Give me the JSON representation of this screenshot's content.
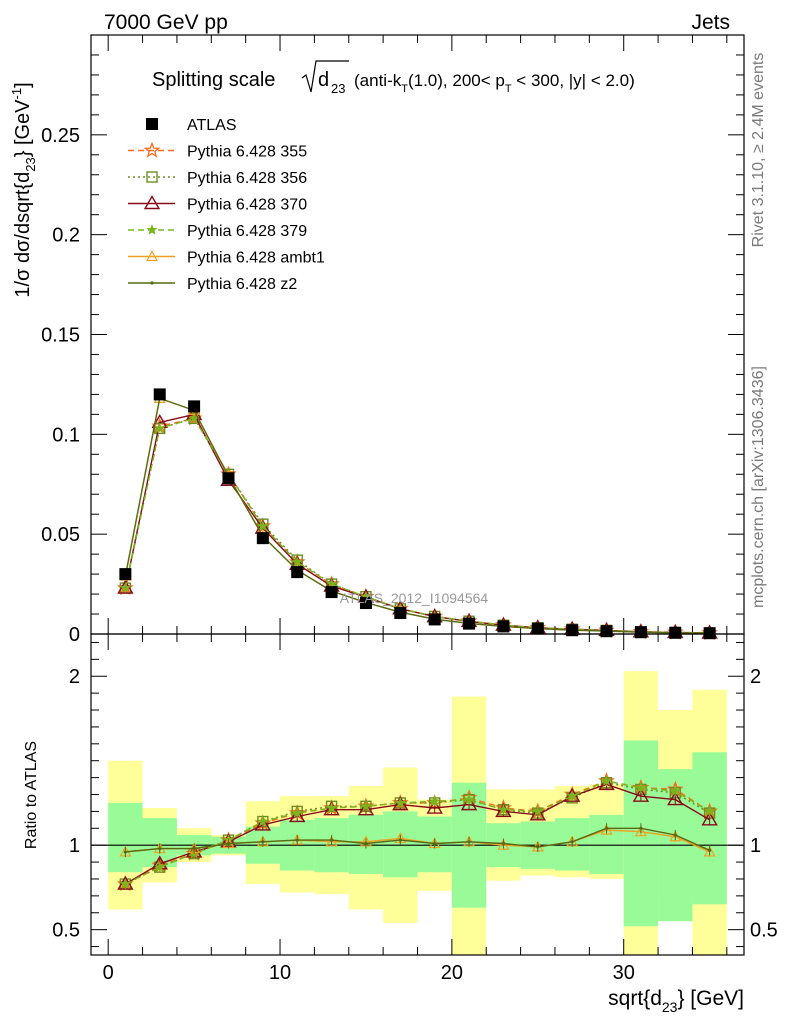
{
  "header": {
    "left": "7000 GeV pp",
    "right": "Jets"
  },
  "side_labels": {
    "rivet": "Rivet 3.1.10, ≥ 2.4M events",
    "mcplots": "mcplots.cern.ch [arXiv:1306.3436]"
  },
  "colors": {
    "data": "#000000",
    "p355": "#ff6a1a",
    "p356": "#6b8e23",
    "p370": "#8b0a1a",
    "p379": "#7ab51d",
    "ambt1": "#f0a020",
    "z2": "#556b14",
    "band_inner": "#98fb98",
    "band_outer": "#ffff99"
  },
  "chart_data": [
    {
      "type": "line",
      "title": "Splitting scale √d23 (anti-kT(1.0), 200< pT < 300, |y| < 2.0)",
      "title_parts": {
        "prefix": "Splitting scale",
        "sqrt_var": "d",
        "sqrt_sub": "23",
        "suffix_a": "(anti-k",
        "suffix_a_sub": "T",
        "suffix_b": "(1.0), 200< p",
        "suffix_b_sub": "T",
        "suffix_c": " < 300, |y| < 2.0)"
      },
      "ylabel": "1/σ dσ/dsqrt{d23} [GeV-1]",
      "ylabel_parts": {
        "main": "1/σ dσ/dsqrt{d",
        "sub": "23",
        "close": "} [GeV",
        "sup": "-1",
        "end": "]"
      },
      "ylim": [
        0,
        0.3
      ],
      "yticks": [
        0,
        0.05,
        0.1,
        0.15,
        0.2,
        0.25
      ],
      "ytick_labels": [
        "0",
        "0.05",
        "0.1",
        "0.15",
        "0.2",
        "0.25"
      ],
      "xlim": [
        -1,
        37
      ],
      "x": [
        1,
        3,
        5,
        7,
        9,
        11,
        13,
        15,
        17,
        19,
        21,
        23,
        25,
        27,
        29,
        31,
        33,
        35
      ],
      "watermark": "ATLAS_2012_I1094564",
      "series": [
        {
          "name": "ATLAS",
          "key": "data",
          "values": [
            0.03,
            0.12,
            0.114,
            0.078,
            0.048,
            0.031,
            0.021,
            0.0155,
            0.0105,
            0.0073,
            0.0052,
            0.0038,
            0.0027,
            0.0019,
            0.0014,
            0.0009,
            0.0006,
            0.0004
          ]
        },
        {
          "name": "Pythia 6.428 355",
          "key": "p355",
          "values": [
            0.023,
            0.104,
            0.108,
            0.08,
            0.054,
            0.036,
            0.025,
            0.0187,
            0.0127,
            0.0088,
            0.0064,
            0.0045,
            0.0031,
            0.0024,
            0.0018,
            0.0011,
            0.0008,
            0.0005
          ]
        },
        {
          "name": "Pythia 6.428 356",
          "key": "p356",
          "values": [
            0.023,
            0.103,
            0.108,
            0.08,
            0.055,
            0.037,
            0.025,
            0.0187,
            0.0126,
            0.0088,
            0.0064,
            0.0044,
            0.0031,
            0.0024,
            0.0018,
            0.0011,
            0.0008,
            0.0005
          ]
        },
        {
          "name": "Pythia 6.428 370",
          "key": "p370",
          "values": [
            0.023,
            0.106,
            0.11,
            0.077,
            0.053,
            0.035,
            0.024,
            0.0185,
            0.0126,
            0.0087,
            0.0063,
            0.0044,
            0.0031,
            0.0024,
            0.0018,
            0.0011,
            0.0008,
            0.0005
          ]
        },
        {
          "name": "Pythia 6.428 379",
          "key": "p379",
          "values": [
            0.023,
            0.103,
            0.108,
            0.08,
            0.054,
            0.036,
            0.025,
            0.0187,
            0.0127,
            0.0088,
            0.0064,
            0.0045,
            0.0031,
            0.0024,
            0.0018,
            0.0011,
            0.0008,
            0.0005
          ]
        },
        {
          "name": "Pythia 6.428 ambt1",
          "key": "ambt1",
          "values": [
            0.029,
            0.118,
            0.112,
            0.079,
            0.049,
            0.032,
            0.0215,
            0.0158,
            0.0109,
            0.0074,
            0.0053,
            0.0038,
            0.0027,
            0.0019,
            0.0015,
            0.0009,
            0.0006,
            0.0004
          ]
        },
        {
          "name": "Pythia 6.428 z2",
          "key": "z2",
          "values": [
            0.029,
            0.118,
            0.112,
            0.079,
            0.049,
            0.032,
            0.0215,
            0.0158,
            0.0109,
            0.0074,
            0.0053,
            0.0038,
            0.0027,
            0.0019,
            0.0015,
            0.0009,
            0.0006,
            0.0004
          ]
        }
      ]
    },
    {
      "type": "line",
      "ylabel": "Ratio to ATLAS",
      "xlabel": "sqrt{d23} [GeV]",
      "xlabel_parts": {
        "main": "sqrt{d",
        "sub": "23",
        "end": "} [GeV]"
      },
      "ylim": [
        0.35,
        2.25
      ],
      "yticks": [
        0.5,
        1,
        2
      ],
      "ytick_labels": [
        "0.5",
        "1",
        "2"
      ],
      "xlim": [
        -1,
        37
      ],
      "xticks": [
        0,
        10,
        20,
        30
      ],
      "xtick_labels": [
        "0",
        "10",
        "20",
        "30"
      ],
      "bin_edges": [
        0,
        2,
        4,
        6,
        8,
        10,
        12,
        14,
        16,
        18,
        20,
        22,
        24,
        26,
        28,
        30,
        32,
        34,
        36
      ],
      "band_inner": [
        [
          0.84,
          1.25
        ],
        [
          0.87,
          1.16
        ],
        [
          0.94,
          1.06
        ],
        [
          0.95,
          1.05
        ],
        [
          0.89,
          1.11
        ],
        [
          0.85,
          1.15
        ],
        [
          0.84,
          1.16
        ],
        [
          0.83,
          1.18
        ],
        [
          0.81,
          1.2
        ],
        [
          0.84,
          1.17
        ],
        [
          0.63,
          1.37
        ],
        [
          0.87,
          1.13
        ],
        [
          0.86,
          1.14
        ],
        [
          0.85,
          1.16
        ],
        [
          0.83,
          1.18
        ],
        [
          0.52,
          1.62
        ],
        [
          0.55,
          1.45
        ],
        [
          0.65,
          1.55
        ]
      ],
      "band_outer": [
        [
          0.62,
          1.5
        ],
        [
          0.78,
          1.22
        ],
        [
          0.9,
          1.1
        ],
        [
          0.94,
          1.06
        ],
        [
          0.77,
          1.26
        ],
        [
          0.72,
          1.29
        ],
        [
          0.71,
          1.29
        ],
        [
          0.62,
          1.35
        ],
        [
          0.54,
          1.46
        ],
        [
          0.73,
          1.27
        ],
        [
          0.3,
          1.88
        ],
        [
          0.79,
          1.33
        ],
        [
          0.82,
          1.33
        ],
        [
          0.81,
          1.35
        ],
        [
          0.8,
          1.36
        ],
        [
          0.3,
          2.03
        ],
        [
          0.7,
          1.8
        ],
        [
          0.3,
          1.92
        ]
      ],
      "series": [
        {
          "name": "Pythia 6.428 355",
          "key": "p355",
          "values": [
            0.77,
            0.88,
            0.95,
            1.03,
            1.13,
            1.19,
            1.22,
            1.23,
            1.25,
            1.25,
            1.28,
            1.22,
            1.2,
            1.3,
            1.38,
            1.34,
            1.33,
            1.2
          ]
        },
        {
          "name": "Pythia 6.428 356",
          "key": "p356",
          "values": [
            0.77,
            0.87,
            0.95,
            1.03,
            1.14,
            1.2,
            1.23,
            1.23,
            1.25,
            1.25,
            1.27,
            1.21,
            1.19,
            1.28,
            1.37,
            1.33,
            1.31,
            1.19
          ]
        },
        {
          "name": "Pythia 6.428 370",
          "key": "p370",
          "values": [
            0.77,
            0.89,
            0.96,
            1.02,
            1.12,
            1.17,
            1.21,
            1.21,
            1.24,
            1.22,
            1.24,
            1.2,
            1.18,
            1.29,
            1.36,
            1.29,
            1.27,
            1.15
          ]
        },
        {
          "name": "Pythia 6.428 379",
          "key": "p379",
          "values": [
            0.77,
            0.87,
            0.95,
            1.03,
            1.14,
            1.19,
            1.22,
            1.23,
            1.25,
            1.26,
            1.27,
            1.21,
            1.2,
            1.29,
            1.38,
            1.34,
            1.32,
            1.2
          ]
        },
        {
          "name": "Pythia 6.428 ambt1",
          "key": "ambt1",
          "values": [
            0.96,
            0.98,
            0.98,
            1.01,
            1.02,
            1.03,
            1.02,
            1.02,
            1.04,
            1.01,
            1.02,
            1.0,
            0.99,
            1.02,
            1.09,
            1.08,
            1.05,
            0.96
          ]
        },
        {
          "name": "Pythia 6.428 z2",
          "key": "z2",
          "values": [
            0.96,
            0.98,
            0.98,
            1.01,
            1.02,
            1.03,
            1.03,
            1.01,
            1.03,
            1.01,
            1.02,
            1.01,
            0.99,
            1.02,
            1.1,
            1.1,
            1.06,
            0.97
          ]
        }
      ]
    }
  ]
}
